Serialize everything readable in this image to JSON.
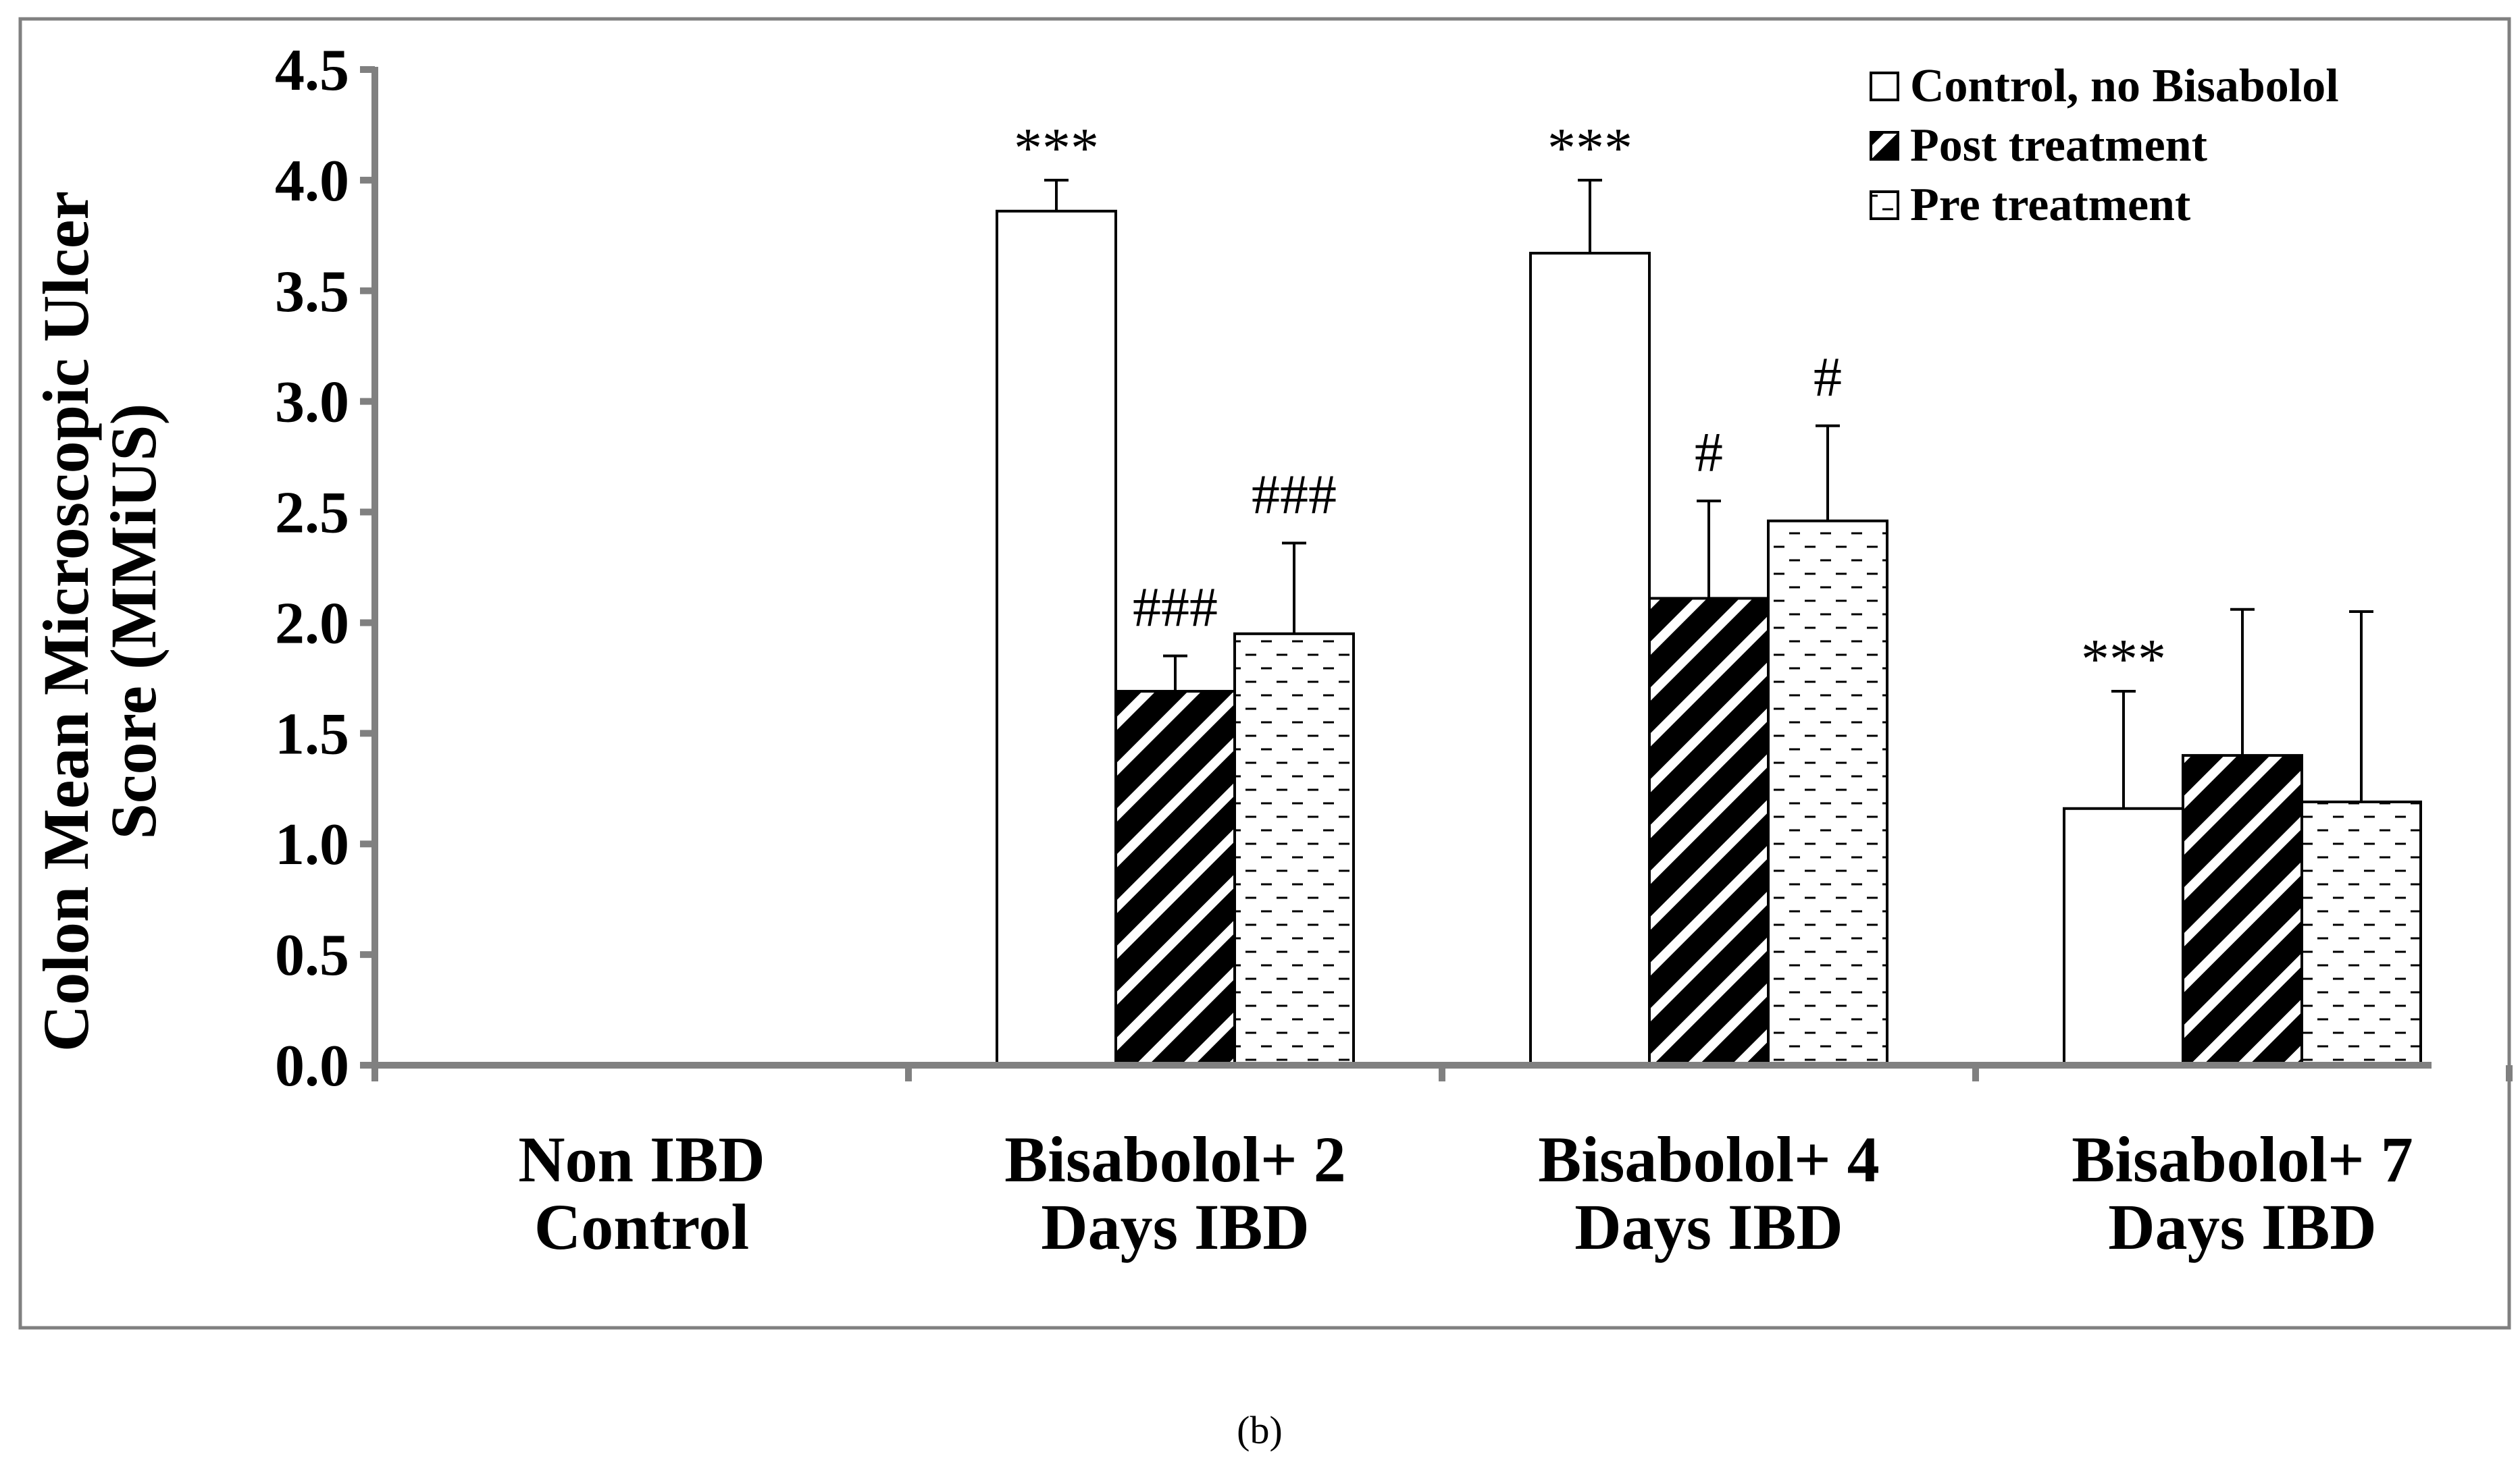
{
  "chart_data": {
    "type": "bar",
    "title": "",
    "xlabel": "",
    "ylabel_lines": [
      "Colon  Mean Microscopic Ulcer",
      "Score (MMiUS)"
    ],
    "ylim": [
      0,
      4.5
    ],
    "ytick_step": 0.5,
    "ytick_labels": [
      "0.0",
      "0.5",
      "1.0",
      "1.5",
      "2.0",
      "2.5",
      "3.0",
      "3.5",
      "4.0",
      "4.5"
    ],
    "categories": [
      [
        "Non IBD",
        "Control"
      ],
      [
        "Bisabolol+ 2",
        "Days IBD"
      ],
      [
        "Bisabolol+ 4",
        "Days IBD"
      ],
      [
        "Bisabolol+ 7",
        "Days IBD"
      ]
    ],
    "series": [
      {
        "name": "Control, no Bisabolol",
        "pattern": "open",
        "values": [
          null,
          3.86,
          3.67,
          1.16
        ],
        "errors": [
          null,
          0.14,
          0.33,
          0.53
        ],
        "annotations": [
          "",
          "***",
          "***",
          "***"
        ]
      },
      {
        "name": "Post treatment",
        "pattern": "diagonal",
        "values": [
          null,
          1.69,
          2.11,
          1.4
        ],
        "errors": [
          null,
          0.16,
          0.44,
          0.66
        ],
        "annotations": [
          "",
          "###",
          "#",
          ""
        ]
      },
      {
        "name": "Pre treatment",
        "pattern": "dashed",
        "values": [
          null,
          1.95,
          2.46,
          1.19
        ],
        "errors": [
          null,
          0.41,
          0.43,
          0.86
        ],
        "annotations": [
          "",
          "###",
          "#",
          ""
        ]
      }
    ],
    "legend_position": "top-right",
    "colors": {
      "bar_edge": "#000000",
      "fill": "#ffffff",
      "pattern": "#000000",
      "axis": "#808080",
      "frame": "#808080"
    }
  },
  "caption": "(b)"
}
